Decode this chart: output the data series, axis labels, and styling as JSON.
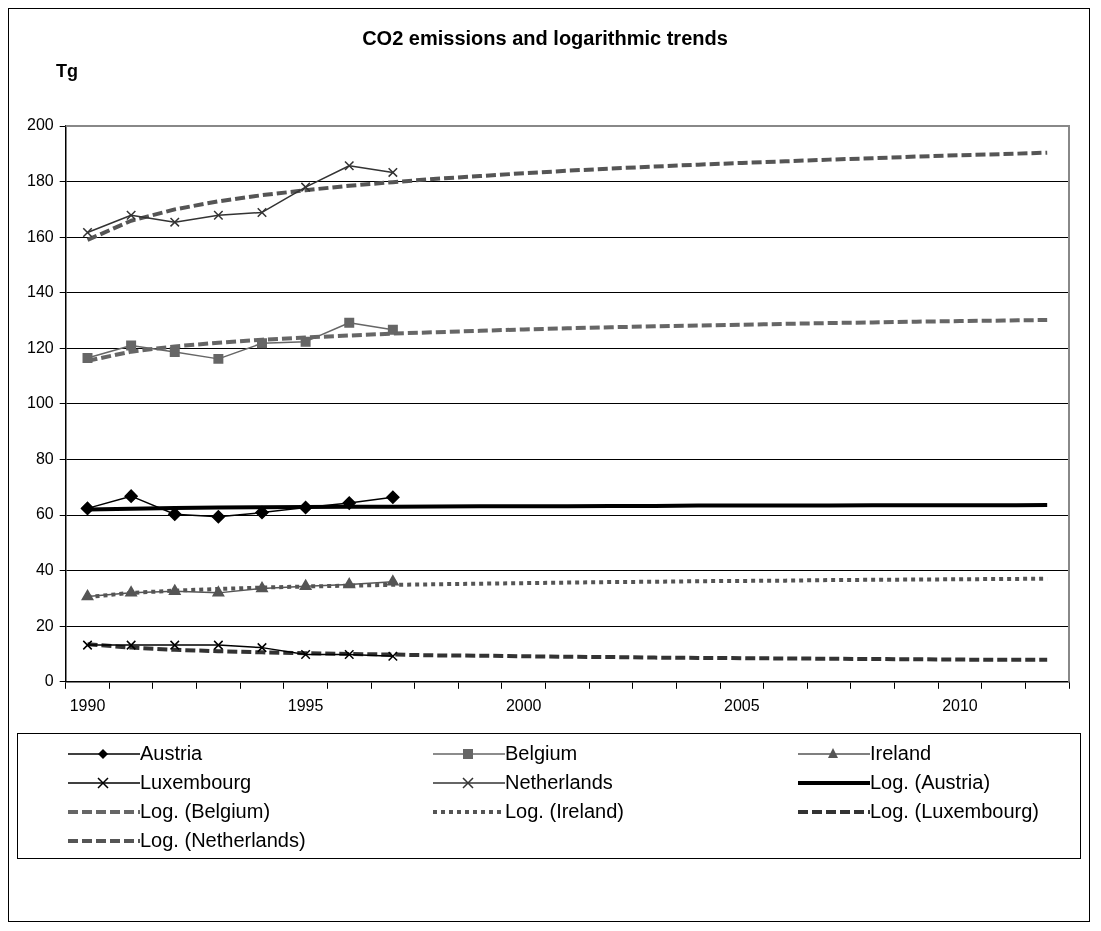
{
  "chart_data": {
    "type": "line",
    "title": "CO2 emissions and logarithmic trends",
    "ylabel": "Tg",
    "categories": [
      "1990",
      null,
      null,
      null,
      null,
      "1995",
      null,
      null,
      null,
      null,
      "2000",
      null,
      null,
      null,
      null,
      "2005",
      null,
      null,
      null,
      null,
      "2010",
      null,
      null
    ],
    "ylim": [
      0,
      200
    ],
    "yticks": [
      0,
      20,
      40,
      60,
      80,
      100,
      120,
      140,
      160,
      180,
      200
    ],
    "grid": "y",
    "legend": "bottom",
    "series": [
      {
        "name": "Austria",
        "color": "#000000",
        "marker": "diamond",
        "line_style": "solid",
        "values": [
          62.4,
          66.8,
          60.3,
          59.4,
          60.9,
          62.7,
          64.3,
          66.4,
          null,
          null,
          null,
          null,
          null,
          null,
          null,
          null,
          null,
          null,
          null,
          null,
          null,
          null,
          null
        ]
      },
      {
        "name": "Belgium",
        "color": "#666666",
        "marker": "square",
        "line_style": "solid",
        "values": [
          116.5,
          121,
          118.7,
          116.2,
          121.8,
          122.4,
          129.2,
          126.7,
          null,
          null,
          null,
          null,
          null,
          null,
          null,
          null,
          null,
          null,
          null,
          null,
          null,
          null,
          null
        ]
      },
      {
        "name": "Ireland",
        "color": "#555555",
        "marker": "triangle",
        "line_style": "solid",
        "values": [
          30.7,
          32,
          32.6,
          32,
          33.6,
          34.4,
          35,
          36,
          null,
          null,
          null,
          null,
          null,
          null,
          null,
          null,
          null,
          null,
          null,
          null,
          null,
          null,
          null
        ]
      },
      {
        "name": "Luxembourg",
        "color": "#000000",
        "marker": "cross",
        "line_style": "solid",
        "values": [
          13.2,
          13.2,
          13.2,
          13.2,
          12.3,
          9.8,
          9.8,
          9.2,
          null,
          null,
          null,
          null,
          null,
          null,
          null,
          null,
          null,
          null,
          null,
          null,
          null,
          null,
          null
        ]
      },
      {
        "name": "Netherlands",
        "color": "#333333",
        "marker": "cross",
        "line_style": "solid",
        "values": [
          161.7,
          167.9,
          165.4,
          167.9,
          168.9,
          178,
          185.7,
          183.3,
          null,
          null,
          null,
          null,
          null,
          null,
          null,
          null,
          null,
          null,
          null,
          null,
          null,
          null,
          null
        ]
      },
      {
        "name": "Log. (Austria)",
        "color": "#000000",
        "marker": "none",
        "line_style": "solid",
        "values": [
          62,
          62.3,
          62.5,
          62.7,
          62.8,
          62.9,
          63,
          63,
          63.1,
          63.2,
          63.2,
          63.2,
          63.3,
          63.3,
          63.4,
          63.4,
          63.4,
          63.4,
          63.5,
          63.5,
          63.5,
          63.5,
          63.6
        ]
      },
      {
        "name": "Log. (Belgium)",
        "color": "#666666",
        "marker": "none",
        "line_style": "dashed",
        "values": [
          115.5,
          118.8,
          120.7,
          122,
          123.1,
          123.9,
          124.6,
          125.3,
          125.8,
          126.3,
          126.8,
          127.2,
          127.6,
          127.9,
          128.2,
          128.5,
          128.8,
          129.1,
          129.3,
          129.6,
          129.8,
          130,
          130.2
        ]
      },
      {
        "name": "Log. (Ireland)",
        "color": "#555555",
        "marker": "none",
        "line_style": "dotted",
        "values": [
          30.5,
          32,
          32.8,
          33.4,
          33.9,
          34.3,
          34.6,
          34.9,
          35.1,
          35.3,
          35.5,
          35.7,
          35.9,
          36,
          36.2,
          36.3,
          36.4,
          36.6,
          36.7,
          36.8,
          36.9,
          37,
          37.1
        ]
      },
      {
        "name": "Log. (Luxembourg)",
        "color": "#333333",
        "marker": "none",
        "line_style": "dashed",
        "values": [
          13.5,
          12.3,
          11.5,
          11,
          10.6,
          10.3,
          10,
          9.8,
          9.5,
          9.4,
          9.2,
          9,
          8.9,
          8.7,
          8.6,
          8.5,
          8.4,
          8.3,
          8.2,
          8.1,
          8,
          7.9,
          7.9
        ]
      },
      {
        "name": "Log. (Netherlands)",
        "color": "#555555",
        "marker": "none",
        "line_style": "dashed",
        "values": [
          159,
          165.9,
          170,
          172.9,
          175.1,
          176.9,
          178.5,
          179.8,
          181,
          182,
          183,
          183.9,
          184.7,
          185.4,
          186.1,
          186.7,
          187.3,
          187.9,
          188.4,
          189,
          189.5,
          189.9,
          190.4
        ]
      }
    ]
  }
}
